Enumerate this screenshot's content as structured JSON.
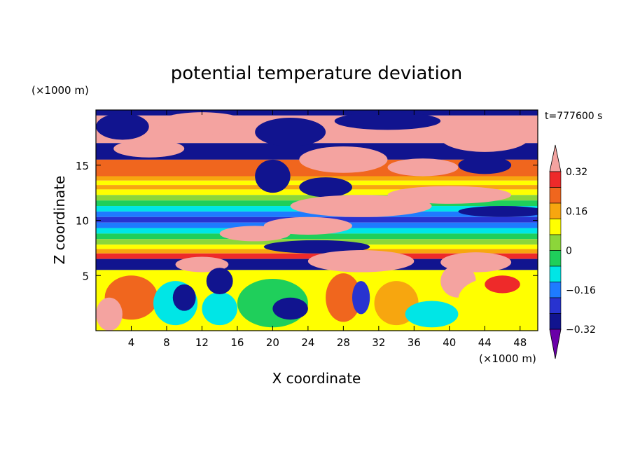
{
  "chart_data": {
    "type": "heatmap",
    "title": "potential temperature deviation",
    "xlabel": "X coordinate",
    "ylabel": "Z coordinate",
    "x_unit": "(×1000 m)",
    "y_unit": "(×1000 m)",
    "time_label": "t=777600 s",
    "xlim": [
      0,
      50
    ],
    "ylim": [
      0,
      20
    ],
    "x_ticks": [
      4,
      8,
      12,
      16,
      20,
      24,
      28,
      32,
      36,
      40,
      44,
      48
    ],
    "y_ticks": [
      5,
      10,
      15
    ],
    "colorbar": {
      "min": -0.4,
      "max": 0.4,
      "step": 0.08,
      "labels": [
        0.32,
        0.16,
        0,
        -0.16,
        -0.32
      ],
      "label_text": [
        "0.32",
        "0.16",
        "0",
        "−0.16",
        "−0.32"
      ],
      "colors_top_to_bottom": [
        "#f4a3a0",
        "#ee2a2a",
        "#f0661e",
        "#f7a60f",
        "#ffff00",
        "#8cd63a",
        "#1fcf5b",
        "#00e6e6",
        "#1e7bff",
        "#2833d0",
        "#11148f",
        "#6a00a8"
      ]
    },
    "bands": [
      {
        "z": [
          19.5,
          20.0
        ],
        "level": -0.4
      },
      {
        "z": [
          17.0,
          19.5
        ],
        "level": 0.4
      },
      {
        "z": [
          15.5,
          17.0
        ],
        "level": -0.4
      },
      {
        "z": [
          14.0,
          15.5
        ],
        "level": 0.24
      },
      {
        "z": [
          13.6,
          14.0
        ],
        "level": 0.16
      },
      {
        "z": [
          13.2,
          13.6
        ],
        "level": 0.08
      },
      {
        "z": [
          12.8,
          13.2
        ],
        "level": 0.16
      },
      {
        "z": [
          12.3,
          12.8
        ],
        "level": 0.08
      },
      {
        "z": [
          11.8,
          12.3
        ],
        "level": 0.0
      },
      {
        "z": [
          11.3,
          11.8
        ],
        "level": -0.08
      },
      {
        "z": [
          10.8,
          11.3
        ],
        "level": -0.16
      },
      {
        "z": [
          10.3,
          10.8
        ],
        "level": -0.24
      },
      {
        "z": [
          9.8,
          10.3
        ],
        "level": -0.32
      },
      {
        "z": [
          9.3,
          9.8
        ],
        "level": -0.24
      },
      {
        "z": [
          8.8,
          9.3
        ],
        "level": -0.16
      },
      {
        "z": [
          8.3,
          8.8
        ],
        "level": -0.08
      },
      {
        "z": [
          7.8,
          8.3
        ],
        "level": 0.0
      },
      {
        "z": [
          7.4,
          7.8
        ],
        "level": 0.08
      },
      {
        "z": [
          7.0,
          7.4
        ],
        "level": 0.16
      },
      {
        "z": [
          6.5,
          7.0
        ],
        "level": 0.32
      },
      {
        "z": [
          5.5,
          6.5
        ],
        "level": -0.4
      },
      {
        "z": [
          0.0,
          5.5
        ],
        "level": 0.08
      }
    ],
    "blobs": [
      {
        "x": 3,
        "z": 18.5,
        "rx": 3,
        "rz": 1.2,
        "level": -0.4
      },
      {
        "x": 12,
        "z": 18.8,
        "rx": 5,
        "rz": 1.0,
        "level": 0.4
      },
      {
        "x": 22,
        "z": 18.0,
        "rx": 4,
        "rz": 1.3,
        "level": -0.4
      },
      {
        "x": 33,
        "z": 19.0,
        "rx": 6,
        "rz": 0.8,
        "level": -0.4
      },
      {
        "x": 44,
        "z": 17.5,
        "rx": 5,
        "rz": 1.3,
        "level": 0.4
      },
      {
        "x": 6,
        "z": 16.5,
        "rx": 4,
        "rz": 0.8,
        "level": 0.4
      },
      {
        "x": 28,
        "z": 15.5,
        "rx": 5,
        "rz": 1.2,
        "level": 0.4
      },
      {
        "x": 37,
        "z": 14.8,
        "rx": 4,
        "rz": 0.8,
        "level": 0.4
      },
      {
        "x": 44,
        "z": 15.0,
        "rx": 3,
        "rz": 0.8,
        "level": -0.4
      },
      {
        "x": 20,
        "z": 14.0,
        "rx": 2,
        "rz": 1.5,
        "level": -0.4
      },
      {
        "x": 26,
        "z": 13.0,
        "rx": 3,
        "rz": 0.9,
        "level": -0.4
      },
      {
        "x": 30,
        "z": 11.3,
        "rx": 8,
        "rz": 1.0,
        "level": 0.4
      },
      {
        "x": 40,
        "z": 12.3,
        "rx": 7,
        "rz": 0.8,
        "level": 0.4
      },
      {
        "x": 46,
        "z": 10.8,
        "rx": 5,
        "rz": 0.5,
        "level": -0.4
      },
      {
        "x": 24,
        "z": 9.5,
        "rx": 5,
        "rz": 0.8,
        "level": 0.4
      },
      {
        "x": 18,
        "z": 8.8,
        "rx": 4,
        "rz": 0.7,
        "level": 0.4
      },
      {
        "x": 25,
        "z": 7.6,
        "rx": 6,
        "rz": 0.6,
        "level": -0.4
      },
      {
        "x": 30,
        "z": 6.3,
        "rx": 6,
        "rz": 1.0,
        "level": 0.4
      },
      {
        "x": 43,
        "z": 6.2,
        "rx": 4,
        "rz": 0.9,
        "level": 0.4
      },
      {
        "x": 41,
        "z": 4.5,
        "rx": 2,
        "rz": 1.5,
        "level": 0.4
      },
      {
        "x": 12,
        "z": 6.0,
        "rx": 3,
        "rz": 0.7,
        "level": 0.4
      },
      {
        "x": 4,
        "z": 3.0,
        "rx": 3,
        "rz": 2.0,
        "level": 0.24
      },
      {
        "x": 1.5,
        "z": 1.5,
        "rx": 1.5,
        "rz": 1.5,
        "level": 0.4
      },
      {
        "x": 9,
        "z": 2.5,
        "rx": 2.5,
        "rz": 2.0,
        "level": -0.16
      },
      {
        "x": 10,
        "z": 3.0,
        "rx": 1.3,
        "rz": 1.2,
        "level": -0.4
      },
      {
        "x": 14,
        "z": 2.0,
        "rx": 2.0,
        "rz": 1.5,
        "level": -0.16
      },
      {
        "x": 14,
        "z": 4.5,
        "rx": 1.5,
        "rz": 1.2,
        "level": -0.4
      },
      {
        "x": 20,
        "z": 2.5,
        "rx": 4,
        "rz": 2.2,
        "level": -0.08
      },
      {
        "x": 22,
        "z": 2.0,
        "rx": 2,
        "rz": 1.0,
        "level": -0.4
      },
      {
        "x": 28,
        "z": 3.0,
        "rx": 2.0,
        "rz": 2.2,
        "level": 0.24
      },
      {
        "x": 30,
        "z": 3.0,
        "rx": 1.0,
        "rz": 1.5,
        "level": -0.32
      },
      {
        "x": 34,
        "z": 2.5,
        "rx": 2.5,
        "rz": 2.0,
        "level": 0.16
      },
      {
        "x": 38,
        "z": 1.5,
        "rx": 3,
        "rz": 1.2,
        "level": -0.16
      },
      {
        "x": 45,
        "z": 2.8,
        "rx": 4,
        "rz": 2.0,
        "level": 0.08
      },
      {
        "x": 46,
        "z": 4.2,
        "rx": 2.0,
        "rz": 0.8,
        "level": 0.32
      }
    ]
  }
}
